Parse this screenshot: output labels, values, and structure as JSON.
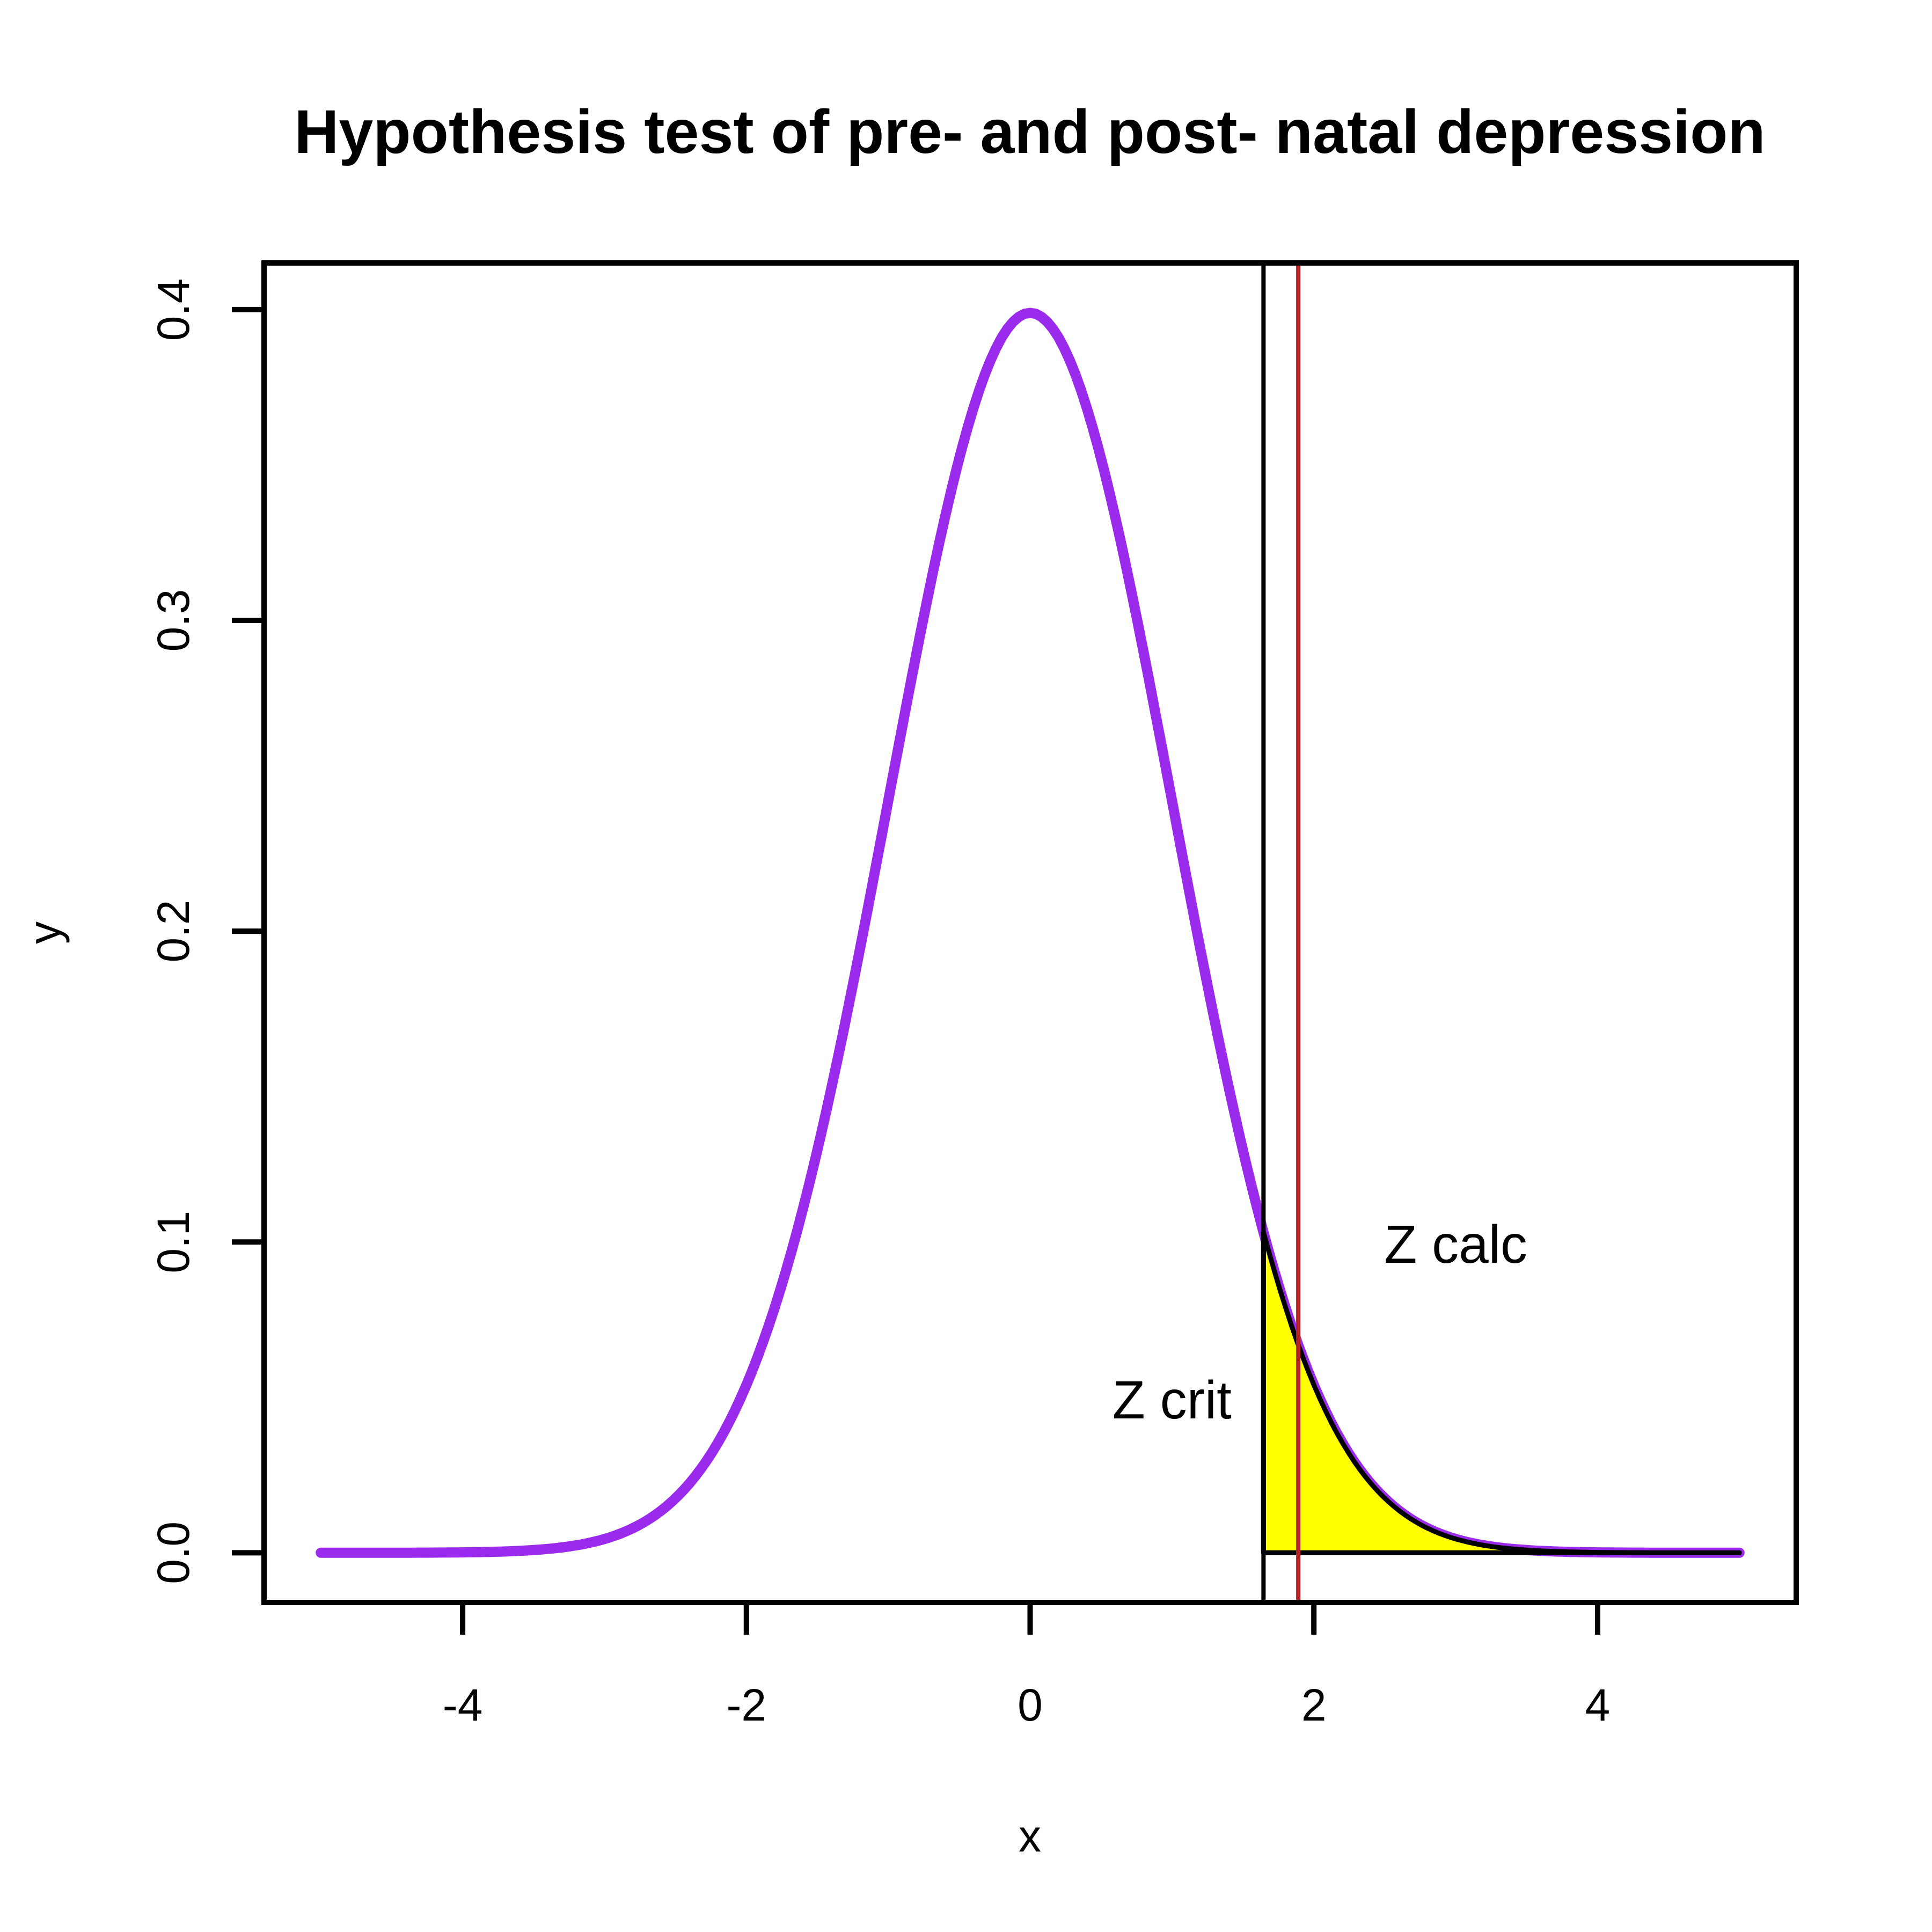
{
  "title": "Hypothesis test of pre- and post- natal depression",
  "chart_data": {
    "type": "line",
    "title": "Hypothesis test of pre- and post- natal depression",
    "xlabel": "x",
    "ylabel": "y",
    "xlim": [
      -5.4,
      5.4
    ],
    "ylim": [
      -0.016,
      0.415
    ],
    "grid": false,
    "legend_position": "none",
    "x_ticks": [
      -4,
      -2,
      0,
      2,
      4
    ],
    "x_tick_labels": [
      "-4",
      "-2",
      "0",
      "2",
      "4"
    ],
    "y_ticks": [
      0.0,
      0.1,
      0.2,
      0.3,
      0.4
    ],
    "y_tick_labels": [
      "0.0",
      "0.1",
      "0.2",
      "0.3",
      "0.4"
    ],
    "curve": {
      "name": "standard-normal-density",
      "mean": 0,
      "sd": 1,
      "peak": 0.398942,
      "x_range": [
        -5,
        5
      ],
      "color": "#9B2BEC",
      "sample_x": [
        -5,
        -4.5,
        -4,
        -3.5,
        -3,
        -2.5,
        -2,
        -1.5,
        -1,
        -0.5,
        0,
        0.5,
        1,
        1.5,
        2,
        2.5,
        3,
        3.5,
        4,
        4.5,
        5
      ],
      "sample_density": [
        0.0,
        0.0,
        0.0001,
        0.0009,
        0.0044,
        0.0175,
        0.054,
        0.1295,
        0.242,
        0.3521,
        0.3989,
        0.3521,
        0.242,
        0.1295,
        0.054,
        0.0175,
        0.0044,
        0.0009,
        0.0001,
        0.0,
        0.0
      ]
    },
    "critical_line": {
      "x": 1.645,
      "color": "#000000"
    },
    "calculated_line": {
      "x": 1.89,
      "color": "#B22222"
    },
    "shaded_region": {
      "description": "right-tail rejection region under the normal curve",
      "from": 1.645,
      "to": 5,
      "fill": "#FFFF00",
      "border": "#000000"
    },
    "annotations": [
      {
        "text": "Z crit",
        "x": 1.0,
        "y": 0.0432
      },
      {
        "text": "Z calc",
        "x": 3.0,
        "y": 0.0933
      }
    ],
    "colors": {
      "background": "#FFFFFF",
      "axis": "#000000",
      "curve": "#9B2BEC",
      "critical_line": "#000000",
      "calculated_line": "#B22222",
      "region_fill": "#FFFF00"
    }
  }
}
